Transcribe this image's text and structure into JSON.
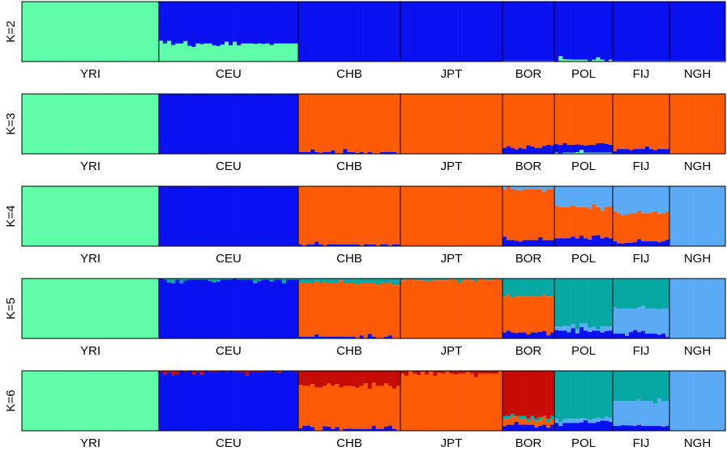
{
  "colors": {
    "ancestry_1": "#5ffcaa",
    "ancestry_2": "#0a11f0",
    "ancestry_3": "#fd5a06",
    "ancestry_4": "#5aaaf6",
    "ancestry_5": "#07a8a4",
    "ancestry_6": "#c60c05",
    "panel_border": "#000000"
  },
  "chart_data": {
    "type": "stacked_bar",
    "description_of_values": "approximate mean ancestry proportion per population, top-to-bottom stacking; individual bars vary around these means",
    "populations": [
      "YRI",
      "CEU",
      "CHB",
      "JPT",
      "BOR",
      "POL",
      "FIJ",
      "NGH"
    ],
    "population_width_share": [
      169,
      172,
      126,
      126,
      64,
      72,
      70,
      69
    ],
    "panels": [
      {
        "label": "K=2",
        "components": [
          "ancestry_2",
          "ancestry_1"
        ],
        "proportions": [
          [
            0.0,
            1.0
          ],
          [
            0.7,
            0.3
          ],
          [
            1.0,
            0.0
          ],
          [
            1.0,
            0.0
          ],
          [
            0.99,
            0.01
          ],
          [
            0.97,
            0.03
          ],
          [
            0.99,
            0.01
          ],
          [
            0.99,
            0.01
          ]
        ]
      },
      {
        "label": "K=3",
        "components": [
          "ancestry_3",
          "ancestry_2",
          "ancestry_1"
        ],
        "proportions": [
          [
            0.0,
            0.0,
            1.0
          ],
          [
            0.0,
            1.0,
            0.0
          ],
          [
            0.97,
            0.03,
            0.0
          ],
          [
            0.99,
            0.01,
            0.0
          ],
          [
            0.9,
            0.1,
            0.0
          ],
          [
            0.85,
            0.13,
            0.02
          ],
          [
            0.92,
            0.08,
            0.0
          ],
          [
            0.99,
            0.01,
            0.0
          ]
        ]
      },
      {
        "label": "K=4",
        "components": [
          "ancestry_4",
          "ancestry_3",
          "ancestry_2",
          "ancestry_1"
        ],
        "proportions": [
          [
            0.0,
            0.0,
            0.0,
            1.0
          ],
          [
            0.0,
            0.0,
            1.0,
            0.0
          ],
          [
            0.0,
            0.97,
            0.03,
            0.0
          ],
          [
            0.0,
            0.99,
            0.01,
            0.0
          ],
          [
            0.05,
            0.85,
            0.1,
            0.0
          ],
          [
            0.35,
            0.52,
            0.13,
            0.0
          ],
          [
            0.45,
            0.47,
            0.08,
            0.0
          ],
          [
            1.0,
            0.0,
            0.0,
            0.0
          ]
        ]
      },
      {
        "label": "K=5",
        "components": [
          "ancestry_5",
          "ancestry_4",
          "ancestry_3",
          "ancestry_2",
          "ancestry_1"
        ],
        "proportions": [
          [
            0.0,
            0.0,
            0.0,
            0.0,
            1.0
          ],
          [
            0.02,
            0.0,
            0.0,
            0.98,
            0.0
          ],
          [
            0.08,
            0.0,
            0.89,
            0.03,
            0.0
          ],
          [
            0.03,
            0.0,
            0.96,
            0.01,
            0.0
          ],
          [
            0.3,
            0.0,
            0.6,
            0.1,
            0.0
          ],
          [
            0.8,
            0.07,
            0.0,
            0.13,
            0.0
          ],
          [
            0.5,
            0.42,
            0.0,
            0.08,
            0.0
          ],
          [
            0.0,
            1.0,
            0.0,
            0.0,
            0.0
          ]
        ]
      },
      {
        "label": "K=6",
        "components": [
          "ancestry_6",
          "ancestry_5",
          "ancestry_4",
          "ancestry_3",
          "ancestry_2",
          "ancestry_1"
        ],
        "proportions": [
          [
            0.0,
            0.0,
            0.0,
            0.0,
            0.0,
            1.0
          ],
          [
            0.02,
            0.0,
            0.0,
            0.0,
            0.98,
            0.0
          ],
          [
            0.25,
            0.0,
            0.0,
            0.72,
            0.03,
            0.0
          ],
          [
            0.05,
            0.0,
            0.0,
            0.94,
            0.01,
            0.0
          ],
          [
            0.75,
            0.05,
            0.0,
            0.1,
            0.1,
            0.0
          ],
          [
            0.0,
            0.8,
            0.07,
            0.0,
            0.13,
            0.0
          ],
          [
            0.0,
            0.5,
            0.42,
            0.0,
            0.08,
            0.0
          ],
          [
            0.0,
            0.0,
            1.0,
            0.0,
            0.0,
            0.0
          ]
        ]
      }
    ]
  }
}
